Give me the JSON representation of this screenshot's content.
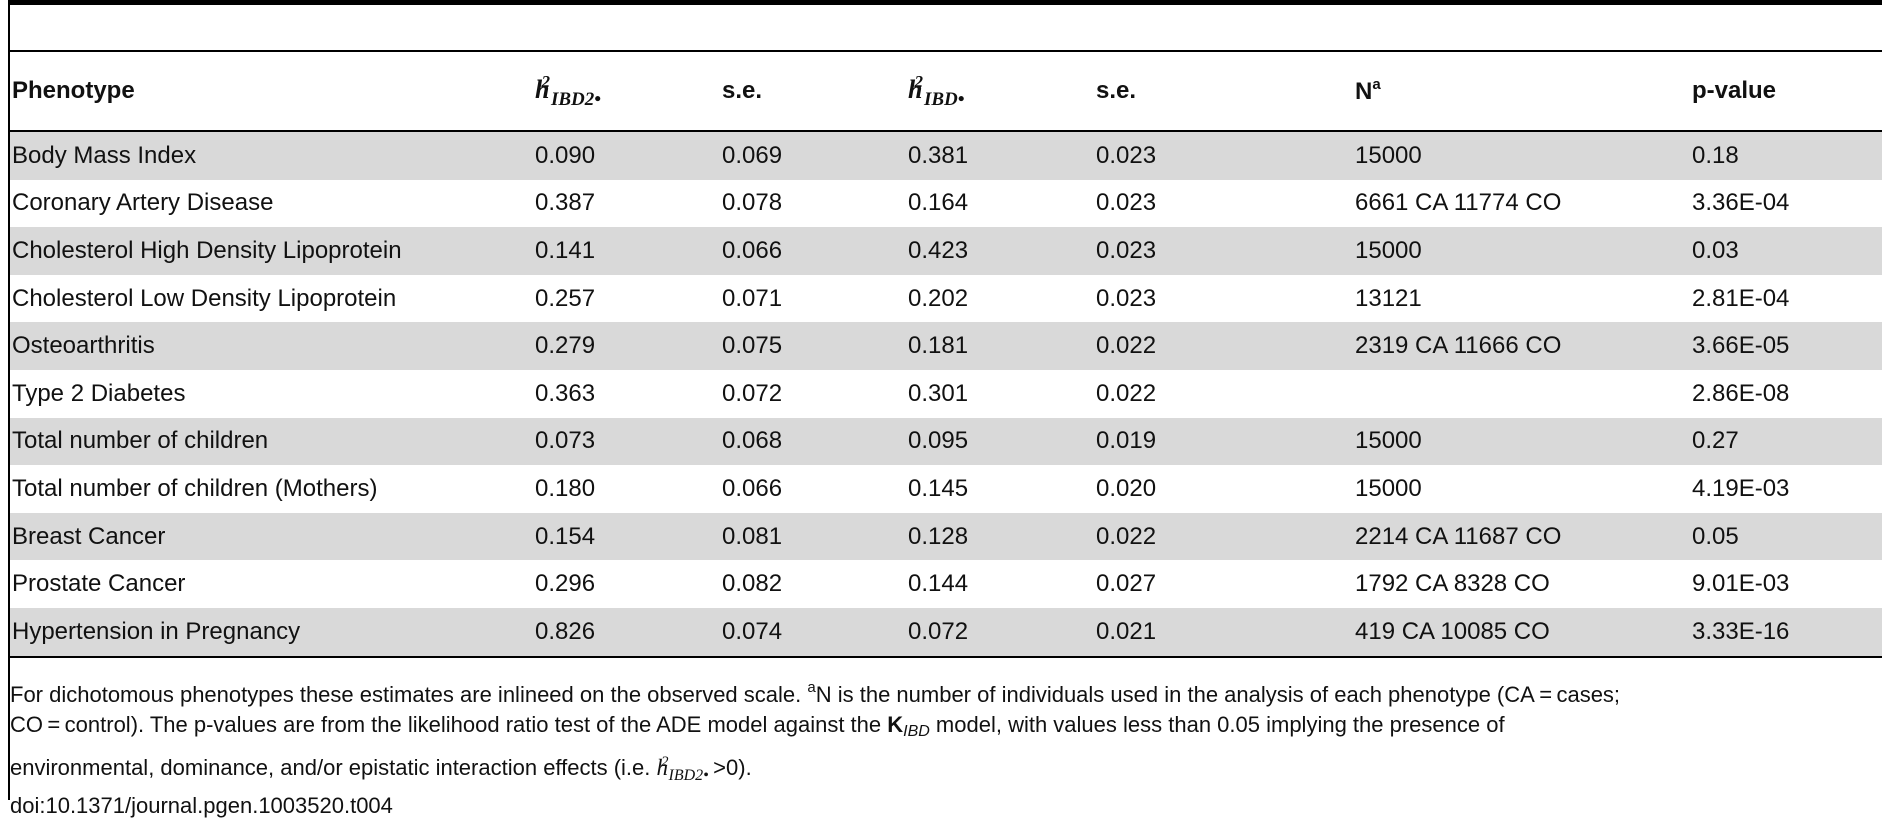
{
  "table": {
    "headers": {
      "phenotype": "Phenotype",
      "h2_ibd2": {
        "base": "h",
        "sup": "2",
        "sub": "IBD2•"
      },
      "se1": "s.e.",
      "h2_ibd": {
        "base": "h",
        "sup": "2",
        "sub": "IBD•"
      },
      "se2": "s.e.",
      "n": {
        "base": "N",
        "sup": "a"
      },
      "pvalue": "p-value"
    },
    "rows": [
      {
        "phenotype": "Body Mass Index",
        "h2_ibd2": "0.090",
        "se1": "0.069",
        "h2_ibd": "0.381",
        "se2": "0.023",
        "n": "15000",
        "pvalue": "0.18"
      },
      {
        "phenotype": "Coronary Artery Disease",
        "h2_ibd2": "0.387",
        "se1": "0.078",
        "h2_ibd": "0.164",
        "se2": "0.023",
        "n": "6661 CA 11774 CO",
        "pvalue": "3.36E-04"
      },
      {
        "phenotype": "Cholesterol High Density Lipoprotein",
        "h2_ibd2": "0.141",
        "se1": "0.066",
        "h2_ibd": "0.423",
        "se2": "0.023",
        "n": "15000",
        "pvalue": "0.03"
      },
      {
        "phenotype": "Cholesterol Low Density Lipoprotein",
        "h2_ibd2": "0.257",
        "se1": "0.071",
        "h2_ibd": "0.202",
        "se2": "0.023",
        "n": "13121",
        "pvalue": "2.81E-04"
      },
      {
        "phenotype": "Osteoarthritis",
        "h2_ibd2": "0.279",
        "se1": "0.075",
        "h2_ibd": "0.181",
        "se2": "0.022",
        "n": "2319 CA 11666 CO",
        "pvalue": "3.66E-05"
      },
      {
        "phenotype": "Type 2 Diabetes",
        "h2_ibd2": "0.363",
        "se1": "0.072",
        "h2_ibd": "0.301",
        "se2": "0.022",
        "n": "",
        "pvalue": "2.86E-08"
      },
      {
        "phenotype": "Total number of children",
        "h2_ibd2": "0.073",
        "se1": "0.068",
        "h2_ibd": "0.095",
        "se2": "0.019",
        "n": "15000",
        "pvalue": "0.27"
      },
      {
        "phenotype": "Total number of children (Mothers)",
        "h2_ibd2": "0.180",
        "se1": "0.066",
        "h2_ibd": "0.145",
        "se2": "0.020",
        "n": "15000",
        "pvalue": "4.19E-03"
      },
      {
        "phenotype": "Breast Cancer",
        "h2_ibd2": "0.154",
        "se1": "0.081",
        "h2_ibd": "0.128",
        "se2": "0.022",
        "n": "2214 CA 11687 CO",
        "pvalue": "0.05"
      },
      {
        "phenotype": "Prostate Cancer",
        "h2_ibd2": "0.296",
        "se1": "0.082",
        "h2_ibd": "0.144",
        "se2": "0.027",
        "n": "1792 CA 8328 CO",
        "pvalue": "9.01E-03"
      },
      {
        "phenotype": "Hypertension in Pregnancy",
        "h2_ibd2": "0.826",
        "se1": "0.074",
        "h2_ibd": "0.072",
        "se2": "0.021",
        "n": "419 CA 10085 CO",
        "pvalue": "3.33E-16"
      }
    ]
  },
  "footnote": {
    "line1_a": "For dichotomous phenotypes these estimates are inlineed on the observed scale. ",
    "line1_sup": "a",
    "line1_b": "N is the number of individuals used in the analysis of each phenotype (CA = cases;",
    "line2_a": "CO = control). The p-values are from the likelihood ratio test of the ADE model against the ",
    "k_base": "K",
    "k_sub": "IBD",
    "line2_b": " model, with values less than 0.05 implying the presence of",
    "line3_a": "environmental, dominance, and/or epistatic interaction effects (i.e. ",
    "math_base": "h",
    "math_sup": "2",
    "math_sub": "IBD2•",
    "line3_b": " >0).",
    "doi": "doi:10.1371/journal.pgen.1003520.t004"
  }
}
